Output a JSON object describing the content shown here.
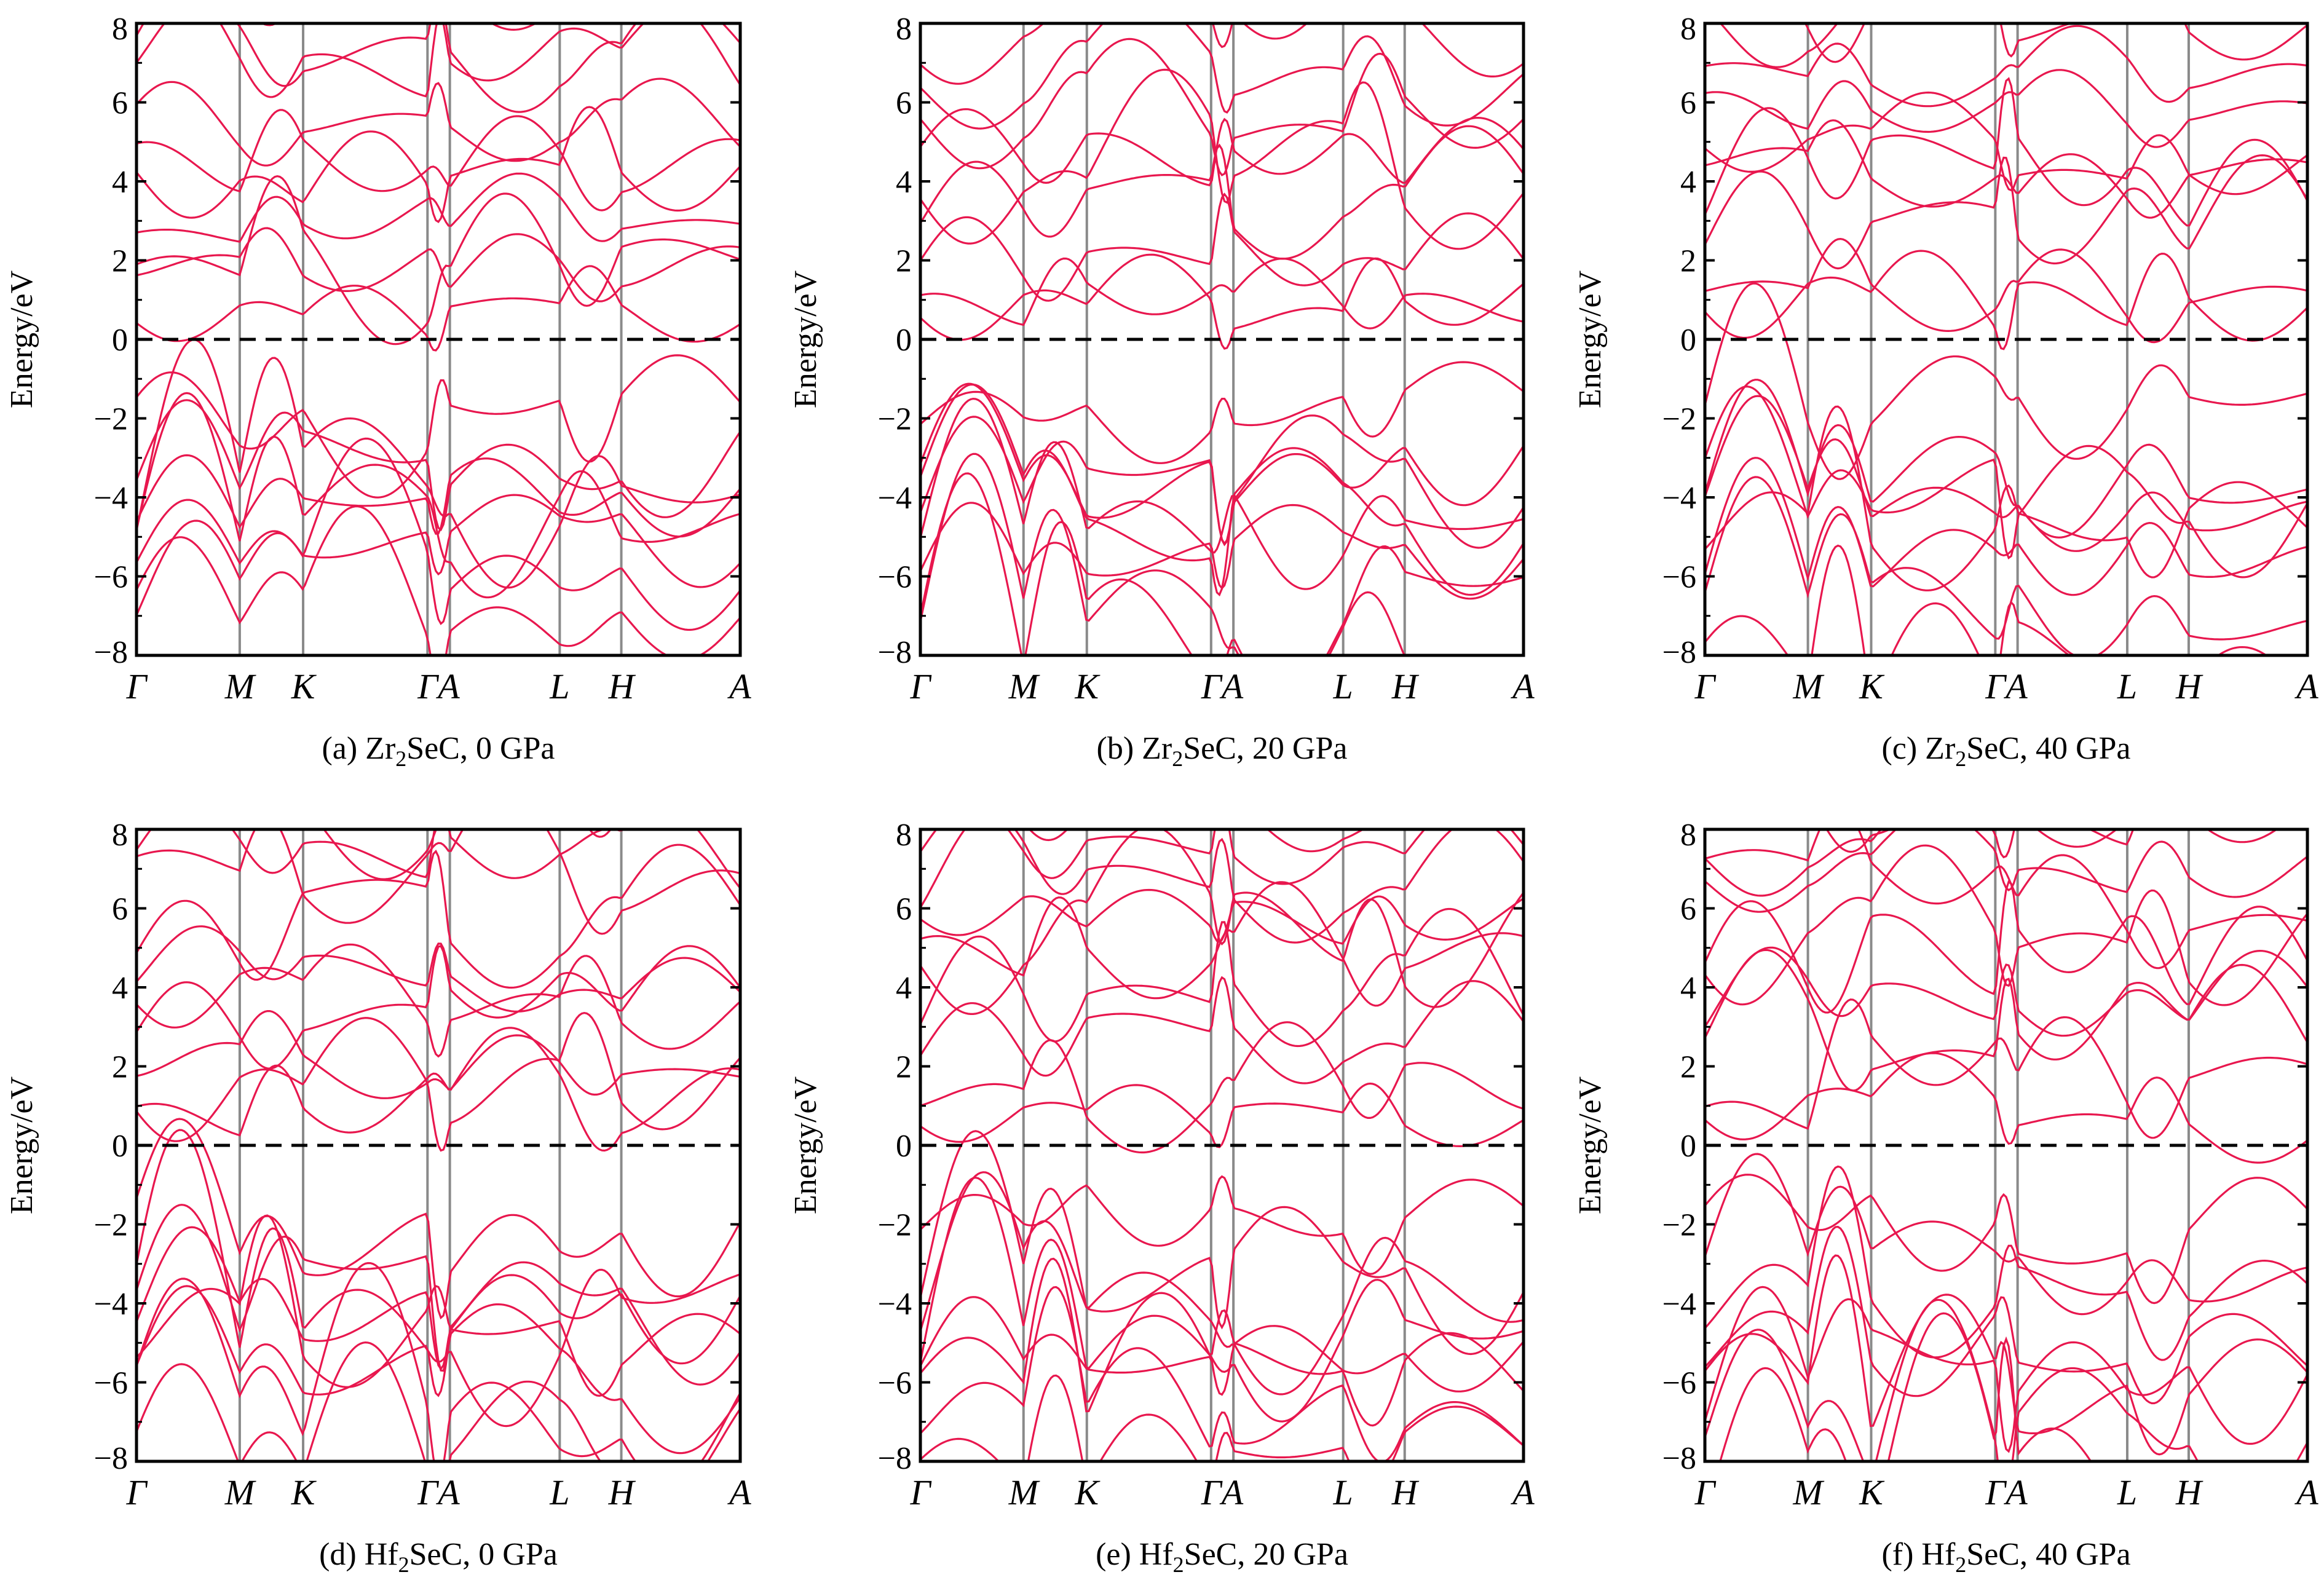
{
  "colors": {
    "band": "#e8174e",
    "fermi": "#000000",
    "axis": "#000000",
    "kline": "#8a8a8a",
    "background": "#ffffff"
  },
  "chart_data": [
    {
      "type": "line",
      "ylabel": "Energy/eV",
      "ylim": [
        -8,
        8
      ],
      "yticks": [
        "8",
        "6",
        "4",
        "2",
        "0",
        "−2",
        "−4",
        "−6",
        "−8"
      ],
      "kpoints": [
        "Γ",
        "M",
        "K",
        "ΓA",
        "L",
        "H",
        "A"
      ],
      "kpos": [
        0,
        0.171,
        0.276,
        0.482,
        0.519,
        0.701,
        0.803,
        1.0
      ],
      "caption": {
        "prefix": "(a) Zr",
        "sub": "2",
        "suffix": "SeC, 0 GPa"
      },
      "fermi_level": 0,
      "valence_tops_eV": [
        -1.0,
        -2.2,
        -2.6,
        -3.3,
        -3.7,
        -4.2,
        -5.3,
        -6.3
      ],
      "conduction_mins_eV": [
        0.0,
        0.2,
        1.3,
        2.4,
        2.9,
        3.4,
        4.8,
        5.6,
        6.6,
        7.6
      ]
    },
    {
      "type": "line",
      "ylabel": "Energy/eV",
      "ylim": [
        -8,
        8
      ],
      "yticks": [
        "8",
        "6",
        "4",
        "2",
        "0",
        "−2",
        "−4",
        "−6",
        "−8"
      ],
      "kpoints": [
        "Γ",
        "M",
        "K",
        "ΓA",
        "L",
        "H",
        "A"
      ],
      "kpos": [
        0,
        0.171,
        0.276,
        0.482,
        0.519,
        0.701,
        0.803,
        1.0
      ],
      "caption": {
        "prefix": "(b) Zr",
        "sub": "2",
        "suffix": "SeC, 20 GPa"
      },
      "fermi_level": 0,
      "valence_tops_eV": [
        -0.9,
        -2.3,
        -2.5,
        -3.4,
        -3.8,
        -4.5,
        -5.6,
        -6.6
      ],
      "conduction_mins_eV": [
        0.0,
        0.3,
        1.5,
        2.5,
        3.1,
        3.7,
        5.0,
        5.9,
        6.9,
        7.7
      ]
    },
    {
      "type": "line",
      "ylabel": "Energy/eV",
      "ylim": [
        -8,
        8
      ],
      "yticks": [
        "8",
        "6",
        "4",
        "2",
        "0",
        "−2",
        "−4",
        "−6",
        "−8"
      ],
      "kpoints": [
        "Γ",
        "M",
        "K",
        "ΓA",
        "L",
        "H",
        "A"
      ],
      "kpos": [
        0,
        0.171,
        0.276,
        0.482,
        0.519,
        0.701,
        0.803,
        1.0
      ],
      "caption": {
        "prefix": "(c) Zr",
        "sub": "2",
        "suffix": "SeC, 40 GPa"
      },
      "fermi_level": 0,
      "valence_tops_eV": [
        -0.8,
        -2.4,
        -2.7,
        -3.6,
        -4.0,
        -4.7,
        -5.8,
        -7.0
      ],
      "conduction_mins_eV": [
        0.0,
        0.4,
        1.7,
        2.6,
        3.3,
        4.0,
        5.3,
        6.2,
        7.1,
        7.8
      ]
    },
    {
      "type": "line",
      "ylabel": "Energy/eV",
      "ylim": [
        -8,
        8
      ],
      "yticks": [
        "8",
        "6",
        "4",
        "2",
        "0",
        "−2",
        "−4",
        "−6",
        "−8"
      ],
      "kpoints": [
        "Γ",
        "M",
        "K",
        "ΓA",
        "L",
        "H",
        "A"
      ],
      "kpos": [
        0,
        0.171,
        0.276,
        0.482,
        0.519,
        0.701,
        0.803,
        1.0
      ],
      "caption": {
        "prefix": "(d) Hf",
        "sub": "2",
        "suffix": "SeC, 0 GPa"
      },
      "fermi_level": 0,
      "valence_tops_eV": [
        -1.2,
        -2.3,
        -2.8,
        -3.5,
        -4.0,
        -4.5,
        -5.5,
        -6.4
      ],
      "conduction_mins_eV": [
        0.0,
        0.2,
        1.3,
        2.5,
        3.0,
        3.6,
        4.6,
        5.4,
        6.5,
        7.4
      ]
    },
    {
      "type": "line",
      "ylabel": "Energy/eV",
      "ylim": [
        -8,
        8
      ],
      "yticks": [
        "8",
        "6",
        "4",
        "2",
        "0",
        "−2",
        "−4",
        "−6",
        "−8"
      ],
      "kpoints": [
        "Γ",
        "M",
        "K",
        "ΓA",
        "L",
        "H",
        "A"
      ],
      "kpos": [
        0,
        0.171,
        0.276,
        0.482,
        0.519,
        0.701,
        0.803,
        1.0
      ],
      "caption": {
        "prefix": "(e) Hf",
        "sub": "2",
        "suffix": "SeC, 20 GPa"
      },
      "fermi_level": 0,
      "valence_tops_eV": [
        -1.0,
        -2.5,
        -2.8,
        -3.7,
        -4.2,
        -4.9,
        -6.0,
        -7.0
      ],
      "conduction_mins_eV": [
        0.0,
        0.3,
        1.6,
        2.6,
        3.3,
        3.9,
        5.0,
        5.8,
        6.8,
        7.6
      ]
    },
    {
      "type": "line",
      "ylabel": "Energy/eV",
      "ylim": [
        -8,
        8
      ],
      "yticks": [
        "8",
        "6",
        "4",
        "2",
        "0",
        "−2",
        "−4",
        "−6",
        "−8"
      ],
      "kpoints": [
        "Γ",
        "M",
        "K",
        "ΓA",
        "L",
        "H",
        "A"
      ],
      "kpos": [
        0,
        0.171,
        0.276,
        0.482,
        0.519,
        0.701,
        0.803,
        1.0
      ],
      "caption": {
        "prefix": "(f) Hf",
        "sub": "2",
        "suffix": "SeC, 40 GPa"
      },
      "fermi_level": 0,
      "valence_tops_eV": [
        -0.9,
        -2.6,
        -3.0,
        -3.9,
        -4.4,
        -5.1,
        -6.4,
        -7.5
      ],
      "conduction_mins_eV": [
        0.0,
        0.4,
        1.8,
        2.7,
        3.5,
        4.1,
        5.3,
        6.1,
        7.0,
        7.8
      ]
    }
  ]
}
